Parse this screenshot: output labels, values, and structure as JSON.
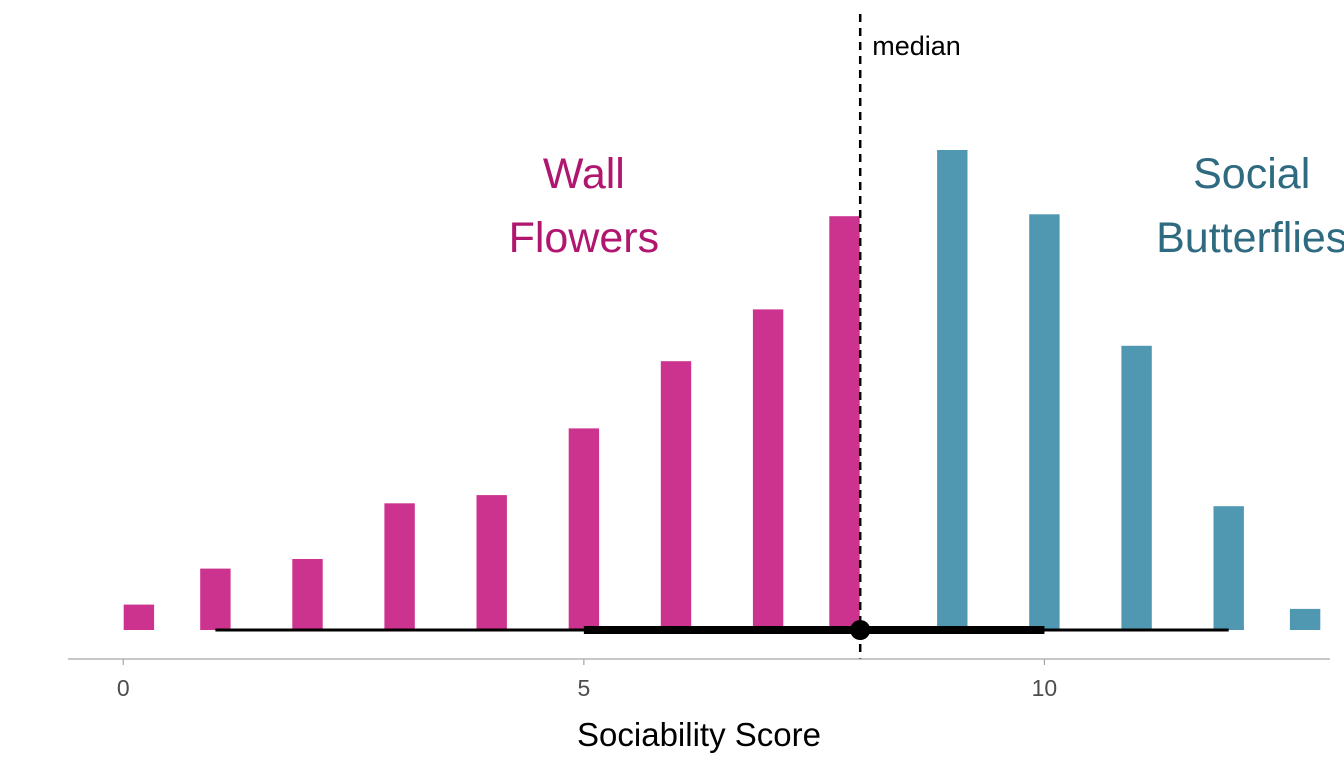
{
  "chart_data": {
    "type": "bar",
    "title": "",
    "xlabel": "Sociability Score",
    "ylabel": "",
    "xlim": [
      -0.6,
      13.1
    ],
    "ylim": [
      0,
      100
    ],
    "x_ticks": [
      {
        "value": 0,
        "label": "0"
      },
      {
        "value": 5,
        "label": "5"
      },
      {
        "value": 10,
        "label": "10"
      }
    ],
    "bar_width": 0.33,
    "grid": false,
    "series": [
      {
        "group": "wall_flowers",
        "color": "#CC338E",
        "bars": [
          {
            "x": 0.17,
            "value": 5.3
          },
          {
            "x": 1.0,
            "value": 12.8
          },
          {
            "x": 2.0,
            "value": 14.8
          },
          {
            "x": 3.0,
            "value": 26.4
          },
          {
            "x": 4.0,
            "value": 28.1
          },
          {
            "x": 5.0,
            "value": 42.0
          },
          {
            "x": 6.0,
            "value": 56.0
          },
          {
            "x": 7.0,
            "value": 66.8
          },
          {
            "x": 7.83,
            "value": 86.2
          }
        ]
      },
      {
        "group": "social_butterflies",
        "color": "#5098B2",
        "bars": [
          {
            "x": 9.0,
            "value": 100.0
          },
          {
            "x": 10.0,
            "value": 86.6
          },
          {
            "x": 11.0,
            "value": 59.2
          },
          {
            "x": 12.0,
            "value": 25.8
          },
          {
            "x": 12.83,
            "value": 4.4
          }
        ]
      }
    ],
    "median": {
      "value": 8.0,
      "label": "median"
    },
    "interval": {
      "point": 8.0,
      "thin_range": [
        1.0,
        12.0
      ],
      "thick_range": [
        5.0,
        10.0
      ]
    },
    "annotations": [
      {
        "lines": [
          "Wall",
          "Flowers"
        ],
        "x": 5.0,
        "color": "#B0166F"
      },
      {
        "lines": [
          "Social",
          "Butterflies"
        ],
        "x": 12.25,
        "color": "#2E6A80"
      }
    ],
    "axis_color": "#A6A6A6"
  }
}
